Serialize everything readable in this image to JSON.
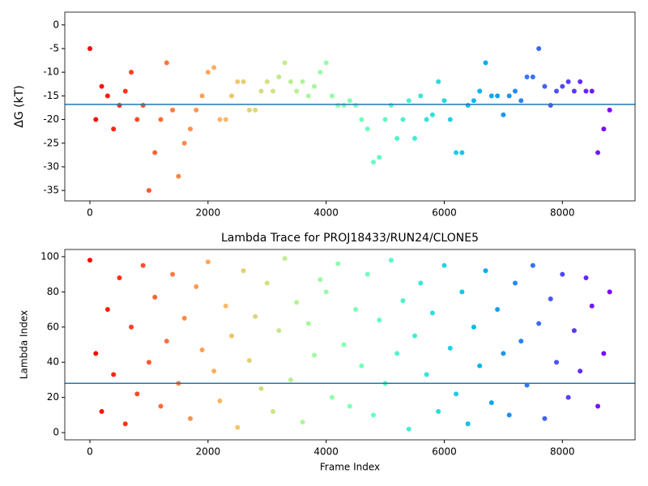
{
  "chart_data": [
    {
      "type": "scatter",
      "ylabel": "ΔG (kT)",
      "colormap": "rainbow_r",
      "hline": -16.8,
      "hline_color": "#1f77b4",
      "xlim": [
        -425,
        9230
      ],
      "ylim": [
        -37.2,
        2.7
      ],
      "xticks": [
        0,
        2000,
        4000,
        6000,
        8000
      ],
      "yticks": [
        -35,
        -30,
        -25,
        -20,
        -15,
        -10,
        -5,
        0
      ],
      "grid": false,
      "x": [
        0,
        100,
        200,
        300,
        400,
        500,
        600,
        700,
        800,
        900,
        1000,
        1100,
        1200,
        1300,
        1400,
        1500,
        1600,
        1700,
        1800,
        1900,
        2000,
        2100,
        2200,
        2300,
        2400,
        2500,
        2600,
        2700,
        2800,
        2900,
        3000,
        3100,
        3200,
        3300,
        3400,
        3500,
        3600,
        3700,
        3800,
        3900,
        4000,
        4100,
        4200,
        4300,
        4400,
        4500,
        4600,
        4700,
        4800,
        4900,
        5000,
        5100,
        5200,
        5300,
        5400,
        5500,
        5600,
        5700,
        5800,
        5900,
        6000,
        6100,
        6200,
        6300,
        6400,
        6500,
        6600,
        6700,
        6800,
        6900,
        7000,
        7100,
        7200,
        7300,
        7400,
        7500,
        7600,
        7700,
        7800,
        7900,
        8000,
        8100,
        8200,
        8300,
        8400,
        8500,
        8600,
        8700,
        8800
      ],
      "values": [
        -5,
        -20,
        -13,
        -15,
        -22,
        -17,
        -14,
        -10,
        -20,
        -17,
        -35,
        -27,
        -20,
        -8,
        -18,
        -32,
        -25,
        -22,
        -18,
        -15,
        -10,
        -9,
        -20,
        -20,
        -15,
        -12,
        -12,
        -18,
        -18,
        -14,
        -12,
        -14,
        -11,
        -8,
        -12,
        -14,
        -12,
        -15,
        -13,
        -10,
        -8,
        -15,
        -17,
        -17,
        -16,
        -17,
        -20,
        -22,
        -29,
        -28,
        -20,
        -17,
        -24,
        -20,
        -16,
        -24,
        -15,
        -20,
        -19,
        -12,
        -16,
        -20,
        -27,
        -27,
        -17,
        -16,
        -14,
        -8,
        -15,
        -15,
        -19,
        -15,
        -14,
        -16,
        -11,
        -11,
        -5,
        -13,
        -17,
        -14,
        -13,
        -12,
        -14,
        -12,
        -14,
        -14,
        -27,
        -22,
        -18
      ]
    },
    {
      "type": "scatter",
      "title": "Lambda Trace for PROJ18433/RUN24/CLONE5",
      "xlabel": "Frame Index",
      "ylabel": "Lambda Index",
      "colormap": "rainbow_r",
      "hline": 28,
      "hline_color": "#1f77b4",
      "xlim": [
        -425,
        9230
      ],
      "ylim": [
        -4.1,
        104.1
      ],
      "xticks": [
        0,
        2000,
        4000,
        6000,
        8000
      ],
      "yticks": [
        0,
        20,
        40,
        60,
        80,
        100
      ],
      "grid": false,
      "x": [
        0,
        100,
        200,
        300,
        400,
        500,
        600,
        700,
        800,
        900,
        1000,
        1100,
        1200,
        1300,
        1400,
        1500,
        1600,
        1700,
        1800,
        1900,
        2000,
        2100,
        2200,
        2300,
        2400,
        2500,
        2600,
        2700,
        2800,
        2900,
        3000,
        3100,
        3200,
        3300,
        3400,
        3500,
        3600,
        3700,
        3800,
        3900,
        4000,
        4100,
        4200,
        4300,
        4400,
        4500,
        4600,
        4700,
        4800,
        4900,
        5000,
        5100,
        5200,
        5300,
        5400,
        5500,
        5600,
        5700,
        5800,
        5900,
        6000,
        6100,
        6200,
        6300,
        6400,
        6500,
        6600,
        6700,
        6800,
        6900,
        7000,
        7100,
        7200,
        7300,
        7400,
        7500,
        7600,
        7700,
        7800,
        7900,
        8000,
        8100,
        8200,
        8300,
        8400,
        8500,
        8600,
        8700,
        8800
      ],
      "values": [
        98,
        45,
        12,
        70,
        33,
        88,
        5,
        60,
        22,
        95,
        40,
        77,
        15,
        52,
        90,
        28,
        65,
        8,
        83,
        47,
        97,
        35,
        18,
        72,
        55,
        3,
        92,
        41,
        66,
        25,
        85,
        12,
        58,
        99,
        30,
        74,
        6,
        62,
        44,
        87,
        80,
        20,
        96,
        50,
        15,
        70,
        38,
        90,
        10,
        64,
        28,
        98,
        45,
        75,
        2,
        55,
        85,
        33,
        68,
        12,
        95,
        48,
        22,
        80,
        5,
        60,
        38,
        92,
        17,
        70,
        45,
        10,
        85,
        52,
        27,
        95,
        62,
        8,
        76,
        40,
        90,
        20,
        58,
        35,
        88,
        72,
        15,
        45,
        80
      ]
    }
  ]
}
